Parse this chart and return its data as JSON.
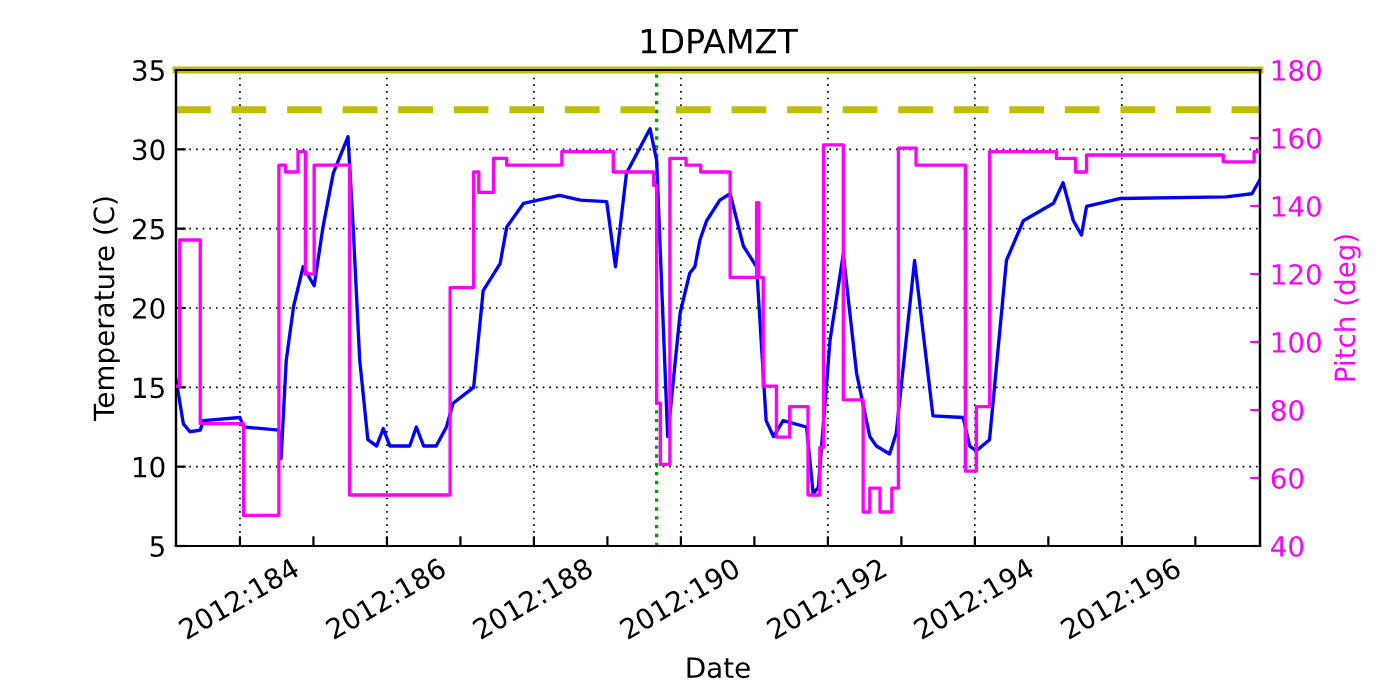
{
  "chart_data": {
    "type": "line",
    "title": "1DPAMZT",
    "xlabel": "Date",
    "ylabel": "Temperature (C)",
    "y2label": "Pitch (deg)",
    "xlim": [
      "2012-07-01T03:07",
      "2012-07-15T21:07"
    ],
    "xticks": [
      {
        "value": "2012-07-02",
        "label": "2012:184"
      },
      {
        "value": "2012-07-03",
        "label": null
      },
      {
        "value": "2012-07-04",
        "label": "2012:186"
      },
      {
        "value": "2012-07-05",
        "label": null
      },
      {
        "value": "2012-07-06",
        "label": "2012:188"
      },
      {
        "value": "2012-07-07",
        "label": null
      },
      {
        "value": "2012-07-08",
        "label": "2012:190"
      },
      {
        "value": "2012-07-09",
        "label": null
      },
      {
        "value": "2012-07-10",
        "label": "2012:192"
      },
      {
        "value": "2012-07-11",
        "label": null
      },
      {
        "value": "2012-07-12",
        "label": "2012:194"
      },
      {
        "value": "2012-07-13",
        "label": null
      },
      {
        "value": "2012-07-14",
        "label": "2012:196"
      },
      {
        "value": "2012-07-15",
        "label": null
      }
    ],
    "ylim": [
      5,
      35
    ],
    "yticks": [
      5,
      10,
      15,
      20,
      25,
      30,
      35
    ],
    "y2lim": [
      40,
      180
    ],
    "y2ticks": [
      40,
      60,
      80,
      100,
      120,
      140,
      160,
      180
    ],
    "grid": true,
    "marker": "none",
    "line_style": "solid",
    "ref_lines": [
      {
        "axis": "y",
        "value": 32.5,
        "color": "#bfbf00",
        "line_style": "dashed"
      },
      {
        "axis": "y",
        "value": 35,
        "color": "#bfbf00",
        "line_style": "solid"
      },
      {
        "axis": "x",
        "value": "2012-07-07T16:05",
        "color": "#00a000",
        "line_style": "dotted"
      }
    ],
    "series": [
      {
        "color": "#0000ff",
        "x": [
          "2012-07-01T03:07",
          "2012-07-01T05:31",
          "2012-07-01T07:41",
          "2012-07-01T11:02",
          "2012-07-01T12:00",
          "2012-07-02T00:00",
          "2012-07-02T01:12",
          "2012-07-02T12:43",
          "2012-07-02T13:26",
          "2012-07-02T15:07",
          "2012-07-02T17:31",
          "2012-07-02T20:38",
          "2012-07-03T00:14",
          "2012-07-03T03:07",
          "2012-07-03T06:29",
          "2012-07-03T11:17",
          "2012-07-03T12:58",
          "2012-07-03T15:07",
          "2012-07-03T17:46",
          "2012-07-03T20:38",
          "2012-07-03T22:48",
          "2012-07-04T00:58",
          "2012-07-04T03:50",
          "2012-07-04T07:26",
          "2012-07-04T09:36",
          "2012-07-04T12:00",
          "2012-07-04T16:05",
          "2012-07-04T19:26",
          "2012-07-04T21:36",
          "2012-07-05T04:19",
          "2012-07-05T07:26",
          "2012-07-05T12:58",
          "2012-07-05T15:07",
          "2012-07-05T20:38",
          "2012-07-06T08:24",
          "2012-07-06T15:07",
          "2012-07-06T23:46",
          "2012-07-07T02:38",
          "2012-07-07T06:14",
          "2012-07-07T13:55",
          "2012-07-07T16:05",
          "2012-07-07T19:41",
          "2012-07-07T23:46",
          "2012-07-08T02:53",
          "2012-07-08T04:34",
          "2012-07-08T06:14",
          "2012-07-08T08:24",
          "2012-07-08T12:43",
          "2012-07-08T16:05",
          "2012-07-08T20:24",
          "2012-07-09T00:43",
          "2012-07-09T03:50",
          "2012-07-09T06:14",
          "2012-07-09T09:22",
          "2012-07-09T17:02",
          "2012-07-09T19:12",
          "2012-07-09T20:53",
          "2012-07-10T00:43",
          "2012-07-10T05:02",
          "2012-07-10T09:22",
          "2012-07-10T13:41",
          "2012-07-10T15:50",
          "2012-07-10T20:10",
          "2012-07-10T22:19",
          "2012-07-11T04:19",
          "2012-07-11T10:19",
          "2012-07-11T20:10",
          "2012-07-11T22:19",
          "2012-07-12T00:29",
          "2012-07-12T04:48",
          "2012-07-12T10:19",
          "2012-07-12T15:50",
          "2012-07-13T01:41",
          "2012-07-13T04:48",
          "2012-07-13T08:10",
          "2012-07-13T10:48",
          "2012-07-13T12:29",
          "2012-07-13T23:17",
          "2012-07-15T10:05",
          "2012-07-15T18:29",
          "2012-07-15T21:07"
        ],
        "values": [
          15.5,
          12.7,
          12.2,
          12.3,
          12.9,
          13.1,
          12.5,
          12.3,
          10.5,
          16.7,
          20.1,
          22.6,
          21.4,
          25.1,
          28.5,
          30.8,
          25.1,
          16.7,
          11.7,
          11.3,
          12.4,
          11.3,
          11.3,
          11.3,
          12.5,
          11.3,
          11.3,
          12.5,
          14.0,
          15.0,
          21.1,
          22.8,
          25.1,
          26.6,
          27.1,
          26.8,
          26.7,
          22.6,
          28.5,
          31.3,
          29.3,
          11.9,
          19.7,
          22.2,
          22.6,
          24.3,
          25.5,
          26.8,
          27.2,
          23.9,
          22.6,
          12.9,
          11.9,
          12.9,
          12.5,
          8.3,
          8.7,
          18.0,
          23.4,
          15.9,
          11.9,
          11.3,
          10.8,
          12.1,
          23.0,
          13.2,
          13.1,
          11.3,
          11.0,
          11.7,
          23.0,
          25.5,
          26.6,
          27.9,
          25.5,
          24.6,
          26.4,
          26.9,
          27.0,
          27.2,
          28.1
        ]
      },
      {
        "type": "step",
        "axis": "y2",
        "color": "#ff00ff",
        "x": [
          "2012-07-01T03:07",
          "2012-07-01T04:19",
          "2012-07-01T11:02",
          "2012-07-02T01:12",
          "2012-07-02T12:43",
          "2012-07-02T14:53",
          "2012-07-02T18:58",
          "2012-07-02T21:22",
          "2012-07-03T00:14",
          "2012-07-03T11:46",
          "2012-07-04T20:38",
          "2012-07-05T04:19",
          "2012-07-05T06:00",
          "2012-07-05T10:48",
          "2012-07-05T15:07",
          "2012-07-06T09:07",
          "2012-07-07T01:55",
          "2012-07-07T15:07",
          "2012-07-07T16:05",
          "2012-07-07T17:17",
          "2012-07-07T20:24",
          "2012-07-08T01:41",
          "2012-07-08T06:29",
          "2012-07-08T16:05",
          "2012-07-09T00:43",
          "2012-07-09T01:26",
          "2012-07-09T02:53",
          "2012-07-09T07:12",
          "2012-07-09T11:31",
          "2012-07-09T17:31",
          "2012-07-09T21:22",
          "2012-07-09T22:34",
          "2012-07-10T05:02",
          "2012-07-10T11:31",
          "2012-07-10T13:41",
          "2012-07-10T17:02",
          "2012-07-10T20:53",
          "2012-07-10T23:02",
          "2012-07-11T04:48",
          "2012-07-11T20:53",
          "2012-07-12T00:29",
          "2012-07-12T04:48",
          "2012-07-13T02:38",
          "2012-07-13T08:53",
          "2012-07-13T12:29",
          "2012-07-15T09:07",
          "2012-07-15T19:12",
          "2012-07-15T21:07"
        ],
        "values": [
          87,
          130,
          76,
          49,
          152,
          150,
          156,
          120,
          152,
          55,
          116,
          150,
          144,
          154,
          152,
          156,
          150,
          146,
          82,
          64,
          154,
          152,
          150,
          119,
          141,
          119,
          87,
          72,
          81,
          55,
          69,
          158,
          83,
          50,
          57,
          50,
          57,
          157,
          152,
          62,
          81,
          156,
          154,
          150,
          155,
          153,
          156,
          156
        ]
      }
    ]
  }
}
